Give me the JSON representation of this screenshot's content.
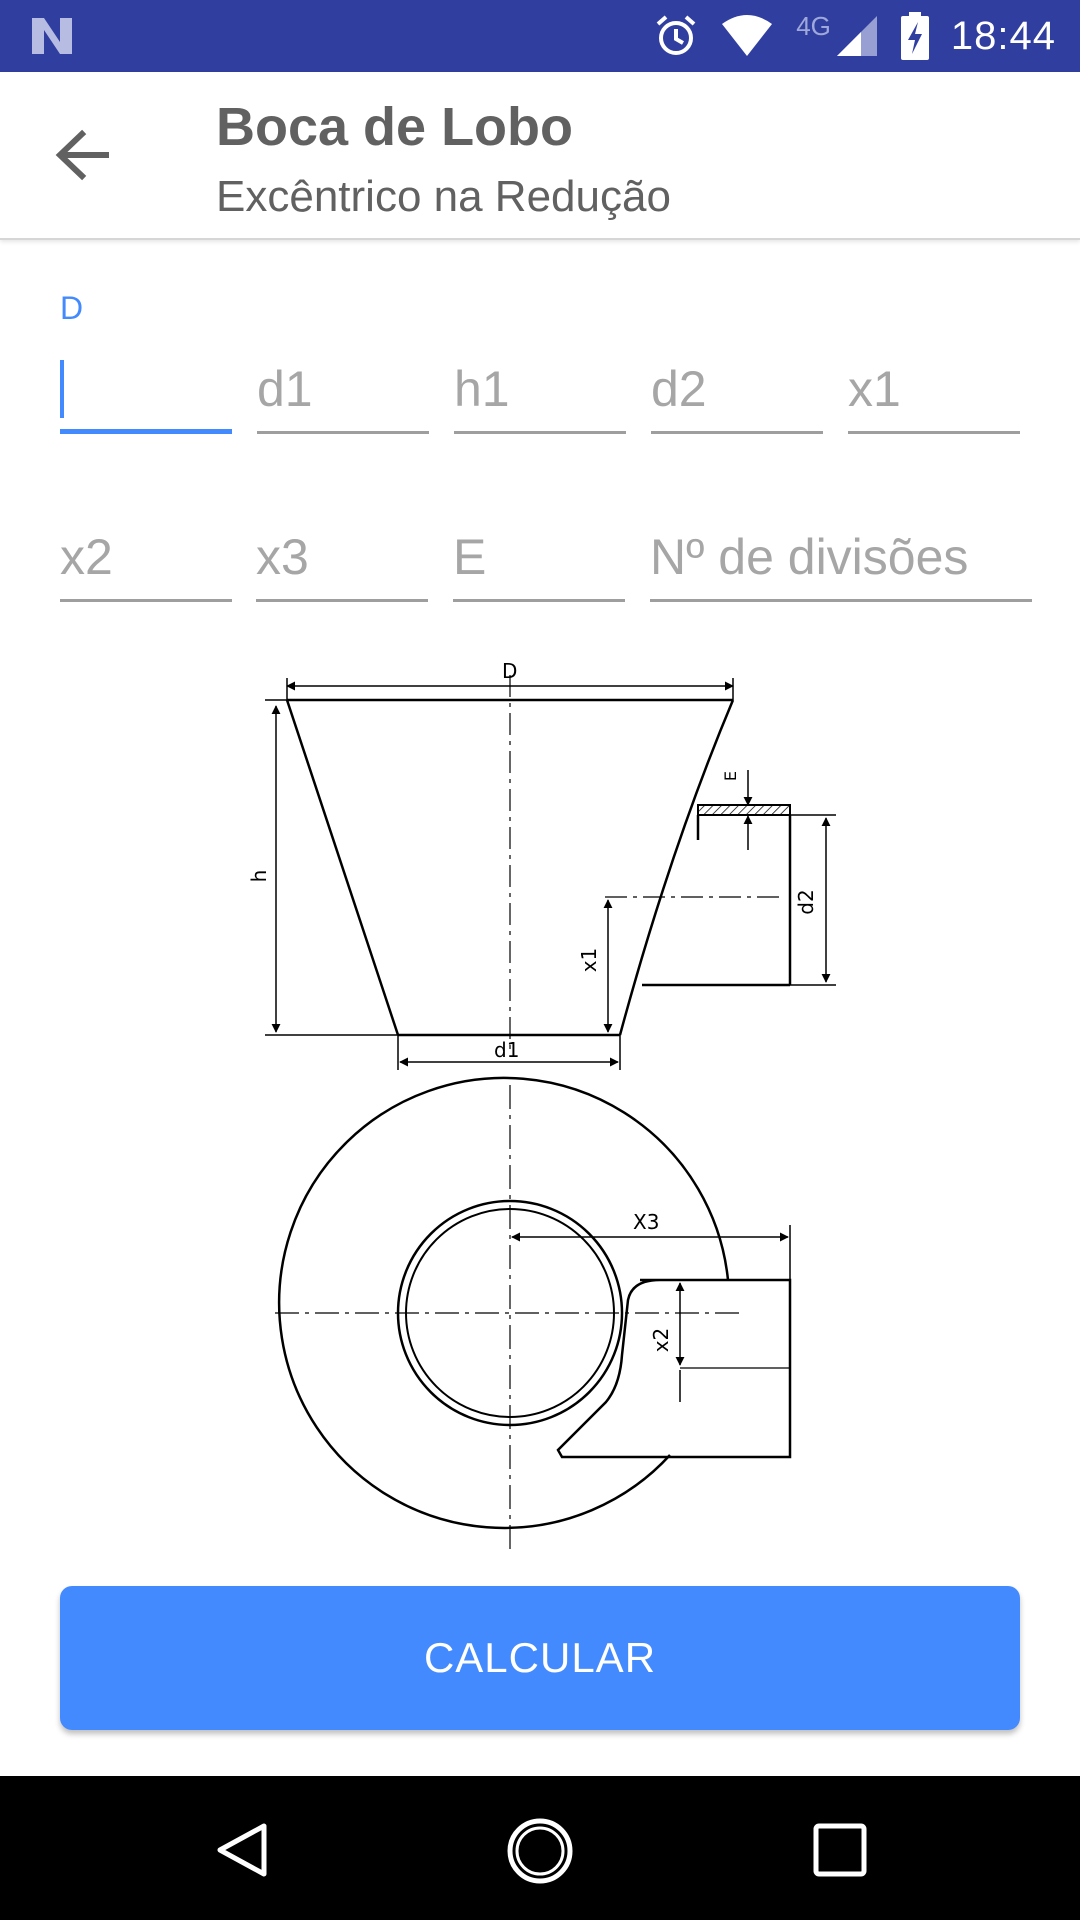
{
  "status_bar": {
    "time": "18:44",
    "network": "4G"
  },
  "app_bar": {
    "title": "Boca de Lobo",
    "subtitle": "Excêntrico na Redução"
  },
  "form": {
    "active_label": "D",
    "fields": {
      "D": {
        "value": "",
        "placeholder": ""
      },
      "d1": {
        "value": "",
        "placeholder": "d1"
      },
      "h1": {
        "value": "",
        "placeholder": "h1"
      },
      "d2": {
        "value": "",
        "placeholder": "d2"
      },
      "x1": {
        "value": "",
        "placeholder": "x1"
      },
      "x2": {
        "value": "",
        "placeholder": "x2"
      },
      "x3": {
        "value": "",
        "placeholder": "x3"
      },
      "E": {
        "value": "",
        "placeholder": "E"
      },
      "divisoes": {
        "value": "",
        "placeholder": "Nº de divisões"
      }
    }
  },
  "diagram": {
    "labels": {
      "D": "D",
      "h": "h",
      "E": "E",
      "d2": "d2",
      "x1": "x1",
      "d1": "d1",
      "x3": "X3",
      "x2": "x2"
    }
  },
  "actions": {
    "calculate_label": "CALCULAR"
  },
  "colors": {
    "status_bar": "#303f9f",
    "accent": "#448aff",
    "text_secondary": "#616161",
    "hint": "#a6a6a6"
  }
}
